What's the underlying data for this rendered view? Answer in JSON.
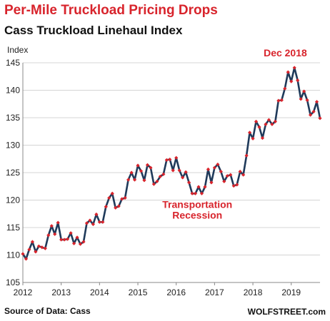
{
  "header": {
    "title": "Per-Mile Truckload Pricing Drops",
    "subtitle": "Cass Truckload Linehaul Index"
  },
  "footer": {
    "source": "Source of Data: Cass",
    "brand": "WOLFSTREET.com"
  },
  "colors": {
    "title": "#d8242c",
    "line": "#1f3a5a",
    "marker": "#d8242c",
    "grid": "#d4d4d4",
    "annotation": "#d8242c"
  },
  "chart_data": {
    "type": "line",
    "title": "Cass Truckload Linehaul Index",
    "ylabel": "Index",
    "xlabel": "",
    "ylim": [
      105,
      145
    ],
    "yticks": [
      105,
      110,
      115,
      120,
      125,
      130,
      135,
      140,
      145
    ],
    "xlim": [
      2012,
      2019.75
    ],
    "xticks": [
      "2012",
      "2013",
      "2014",
      "2015",
      "2016",
      "2017",
      "2018",
      "2019"
    ],
    "grid": "horizontal",
    "annotations": [
      {
        "text": "Dec 2018",
        "x": 2018.92,
        "y": 144.1
      },
      {
        "text": "Transportation",
        "x": 2016.55,
        "y": 119.2
      },
      {
        "text": "Recession",
        "x": 2016.55,
        "y": 117.3
      }
    ],
    "series": [
      {
        "frequency": "monthly",
        "start": "2012-01",
        "values": [
          110.2,
          109.3,
          111.0,
          112.4,
          110.6,
          111.6,
          111.4,
          111.2,
          113.6,
          115.3,
          113.8,
          115.9,
          112.8,
          112.8,
          112.9,
          114.0,
          112.1,
          113.2,
          112.0,
          112.4,
          115.8,
          116.3,
          115.6,
          117.4,
          116.0,
          116.0,
          118.8,
          120.4,
          121.2,
          118.6,
          118.9,
          120.2,
          120.4,
          123.7,
          125.0,
          123.7,
          126.3,
          125.3,
          123.6,
          126.4,
          125.9,
          122.9,
          123.4,
          124.3,
          124.7,
          127.3,
          127.4,
          125.4,
          127.7,
          125.4,
          124.1,
          125.1,
          123.2,
          121.2,
          121.2,
          122.4,
          121.2,
          122.4,
          125.6,
          123.2,
          125.9,
          126.5,
          125.2,
          123.4,
          124.4,
          124.6,
          122.6,
          122.8,
          125.2,
          124.6,
          128.1,
          132.3,
          131.2,
          134.3,
          133.3,
          131.3,
          133.8,
          134.6,
          133.8,
          134.3,
          138.1,
          138.2,
          140.3,
          143.3,
          141.6,
          144.1,
          141.8,
          138.4,
          139.8,
          138.2,
          135.5,
          136.1,
          137.9,
          134.9
        ]
      }
    ]
  }
}
